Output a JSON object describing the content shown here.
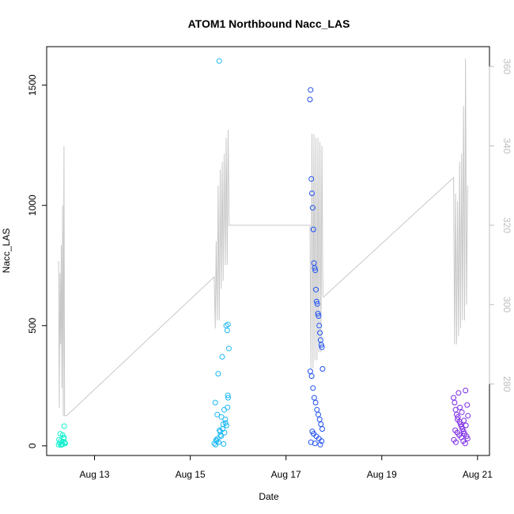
{
  "chart_data": {
    "type": "scatter",
    "title": "ATOM1 Northbound Nacc_LAS",
    "xlabel": "Date",
    "ylabel": "Nacc_LAS",
    "x_ticks": [
      "Aug 13",
      "Aug 15",
      "Aug 17",
      "Aug 19",
      "Aug 21"
    ],
    "xlim": [
      "2023-08-12T00:00",
      "2023-08-21T06:00"
    ],
    "y_ticks": [
      0,
      500,
      1000,
      1500
    ],
    "ylim": [
      -40,
      1660
    ],
    "y2_ticks": [
      280,
      300,
      320,
      340,
      360
    ],
    "y2lim": [
      262,
      365
    ],
    "grid": false,
    "colors": {
      "background": "#ffffff",
      "axis": "#000000",
      "secondary_series": "#c8c8c8",
      "secondary_axis": "#bdbdbd"
    },
    "series": [
      {
        "kind": "points",
        "marker": "open-circle",
        "color": "#17f0cf",
        "x": [
          "2023-08-12T06:00",
          "2023-08-12T06:30",
          "2023-08-12T07:00",
          "2023-08-12T07:30",
          "2023-08-12T08:00",
          "2023-08-12T08:30",
          "2023-08-12T09:00",
          "2023-08-12T09:20",
          "2023-08-12T06:10",
          "2023-08-12T07:10",
          "2023-08-12T08:10",
          "2023-08-12T08:50",
          "2023-08-12T06:50",
          "2023-08-12T07:50",
          "2023-08-12T08:40",
          "2023-08-12T09:10"
        ],
        "y": [
          5,
          12,
          20,
          8,
          45,
          30,
          15,
          10,
          25,
          3,
          18,
          82,
          50,
          6,
          35,
          12
        ]
      },
      {
        "kind": "points",
        "marker": "open-circle",
        "color": "#1ab8f5",
        "x": [
          "2023-08-15T12:00",
          "2023-08-15T12:30",
          "2023-08-15T13:00",
          "2023-08-15T13:30",
          "2023-08-15T14:00",
          "2023-08-15T14:30",
          "2023-08-15T15:00",
          "2023-08-15T15:30",
          "2023-08-15T16:00",
          "2023-08-15T16:30",
          "2023-08-15T17:00",
          "2023-08-15T17:30",
          "2023-08-15T18:00",
          "2023-08-15T18:30",
          "2023-08-15T19:00",
          "2023-08-15T19:20",
          "2023-08-15T13:10",
          "2023-08-15T14:10",
          "2023-08-15T15:10",
          "2023-08-15T16:10",
          "2023-08-15T17:10",
          "2023-08-15T18:10",
          "2023-08-15T18:40",
          "2023-08-15T15:40",
          "2023-08-15T16:40",
          "2023-08-15T17:40",
          "2023-08-15T18:50",
          "2023-08-15T18:55",
          "2023-08-15T12:40",
          "2023-08-15T13:40",
          "2023-08-15T14:40"
        ],
        "y": [
          10,
          180,
          25,
          130,
          300,
          1600,
          60,
          40,
          370,
          90,
          150,
          110,
          500,
          480,
          200,
          405,
          20,
          15,
          45,
          70,
          55,
          85,
          160,
          120,
          8,
          95,
          210,
          505,
          5,
          30,
          65
        ]
      },
      {
        "kind": "points",
        "marker": "open-circle",
        "color": "#1e50f0",
        "x": [
          "2023-08-17T12:00",
          "2023-08-17T12:20",
          "2023-08-17T12:40",
          "2023-08-17T13:00",
          "2023-08-17T13:20",
          "2023-08-17T13:40",
          "2023-08-17T14:00",
          "2023-08-17T14:20",
          "2023-08-17T14:40",
          "2023-08-17T15:00",
          "2023-08-17T15:20",
          "2023-08-17T15:40",
          "2023-08-17T16:00",
          "2023-08-17T16:20",
          "2023-08-17T16:40",
          "2023-08-17T17:00",
          "2023-08-17T17:20",
          "2023-08-17T17:40",
          "2023-08-17T18:00",
          "2023-08-17T18:20",
          "2023-08-17T12:10",
          "2023-08-17T12:50",
          "2023-08-17T13:30",
          "2023-08-17T14:10",
          "2023-08-17T14:50",
          "2023-08-17T15:30",
          "2023-08-17T16:10",
          "2023-08-17T16:50",
          "2023-08-17T17:30",
          "2023-08-17T18:10",
          "2023-08-17T13:10",
          "2023-08-17T13:50",
          "2023-08-17T15:10",
          "2023-08-17T16:30",
          "2023-08-17T17:50",
          "2023-08-17T12:30",
          "2023-08-17T14:30",
          "2023-08-17T17:10"
        ],
        "y": [
          1440,
          1480,
          1110,
          1050,
          990,
          900,
          760,
          740,
          730,
          650,
          600,
          590,
          550,
          540,
          500,
          470,
          440,
          420,
          410,
          320,
          310,
          290,
          240,
          200,
          180,
          150,
          130,
          110,
          90,
          70,
          60,
          50,
          40,
          30,
          20,
          15,
          10,
          5
        ]
      },
      {
        "kind": "points",
        "marker": "open-circle",
        "color": "#7b28e6",
        "x": [
          "2023-08-20T12:00",
          "2023-08-20T12:30",
          "2023-08-20T13:00",
          "2023-08-20T13:30",
          "2023-08-20T14:00",
          "2023-08-20T14:30",
          "2023-08-20T15:00",
          "2023-08-20T15:30",
          "2023-08-20T16:00",
          "2023-08-20T16:30",
          "2023-08-20T17:00",
          "2023-08-20T17:30",
          "2023-08-20T18:00",
          "2023-08-20T18:30",
          "2023-08-20T19:00",
          "2023-08-20T12:10",
          "2023-08-20T13:10",
          "2023-08-20T14:10",
          "2023-08-20T15:10",
          "2023-08-20T16:10",
          "2023-08-20T17:10",
          "2023-08-20T18:10",
          "2023-08-20T12:50",
          "2023-08-20T13:50",
          "2023-08-20T14:50",
          "2023-08-20T15:50",
          "2023-08-20T16:50",
          "2023-08-20T17:50",
          "2023-08-20T18:50",
          "2023-08-20T19:10"
        ],
        "y": [
          200,
          180,
          150,
          130,
          110,
          220,
          100,
          90,
          80,
          70,
          60,
          50,
          230,
          40,
          30,
          25,
          15,
          120,
          160,
          140,
          105,
          85,
          65,
          55,
          45,
          35,
          20,
          10,
          170,
          125
        ]
      },
      {
        "kind": "line",
        "axis": "right",
        "color": "#c8c8c8",
        "x": [
          "2023-08-12T06:00",
          "2023-08-12T06:20",
          "2023-08-12T06:40",
          "2023-08-12T07:00",
          "2023-08-12T07:20",
          "2023-08-12T07:40",
          "2023-08-12T08:00",
          "2023-08-12T08:20",
          "2023-08-12T08:40",
          "2023-08-12T09:00",
          "2023-08-12T09:20",
          "2023-08-12T09:40",
          "2023-08-12T10:00",
          "2023-08-15T12:00",
          "2023-08-15T12:30",
          "2023-08-15T13:00",
          "2023-08-15T13:30",
          "2023-08-15T14:00",
          "2023-08-15T14:30",
          "2023-08-15T15:00",
          "2023-08-15T15:30",
          "2023-08-15T16:00",
          "2023-08-15T16:30",
          "2023-08-15T17:00",
          "2023-08-15T17:30",
          "2023-08-15T18:00",
          "2023-08-15T18:30",
          "2023-08-15T19:00",
          "2023-08-15T19:30",
          "2023-08-15T20:00",
          "2023-08-17T12:00",
          "2023-08-17T12:30",
          "2023-08-17T13:00",
          "2023-08-17T13:30",
          "2023-08-17T14:00",
          "2023-08-17T14:30",
          "2023-08-17T15:00",
          "2023-08-17T15:30",
          "2023-08-17T16:00",
          "2023-08-17T16:30",
          "2023-08-17T17:00",
          "2023-08-17T17:30",
          "2023-08-17T18:00",
          "2023-08-17T18:30",
          "2023-08-17T19:00",
          "2023-08-20T12:00",
          "2023-08-20T12:30",
          "2023-08-20T13:00",
          "2023-08-20T13:30",
          "2023-08-20T14:00",
          "2023-08-20T14:30",
          "2023-08-20T15:00",
          "2023-08-20T15:30",
          "2023-08-20T16:00",
          "2023-08-20T16:30",
          "2023-08-20T17:00",
          "2023-08-20T17:30",
          "2023-08-20T18:00",
          "2023-08-20T18:30",
          "2023-08-20T19:00"
        ],
        "y": [
          311,
          274,
          308,
          290,
          315,
          279,
          325,
          272,
          340,
          272,
          272,
          272,
          272,
          307,
          294,
          316,
          296,
          330,
          296,
          334,
          304,
          336,
          306,
          338,
          310,
          342,
          310,
          344,
          320,
          320,
          320,
          284,
          343,
          284,
          343,
          286,
          342,
          286,
          342,
          288,
          341,
          288,
          340,
          302,
          302,
          332,
          290,
          328,
          290,
          326,
          292,
          336,
          294,
          338,
          296,
          350,
          296,
          362,
          300,
          330
        ]
      }
    ]
  }
}
